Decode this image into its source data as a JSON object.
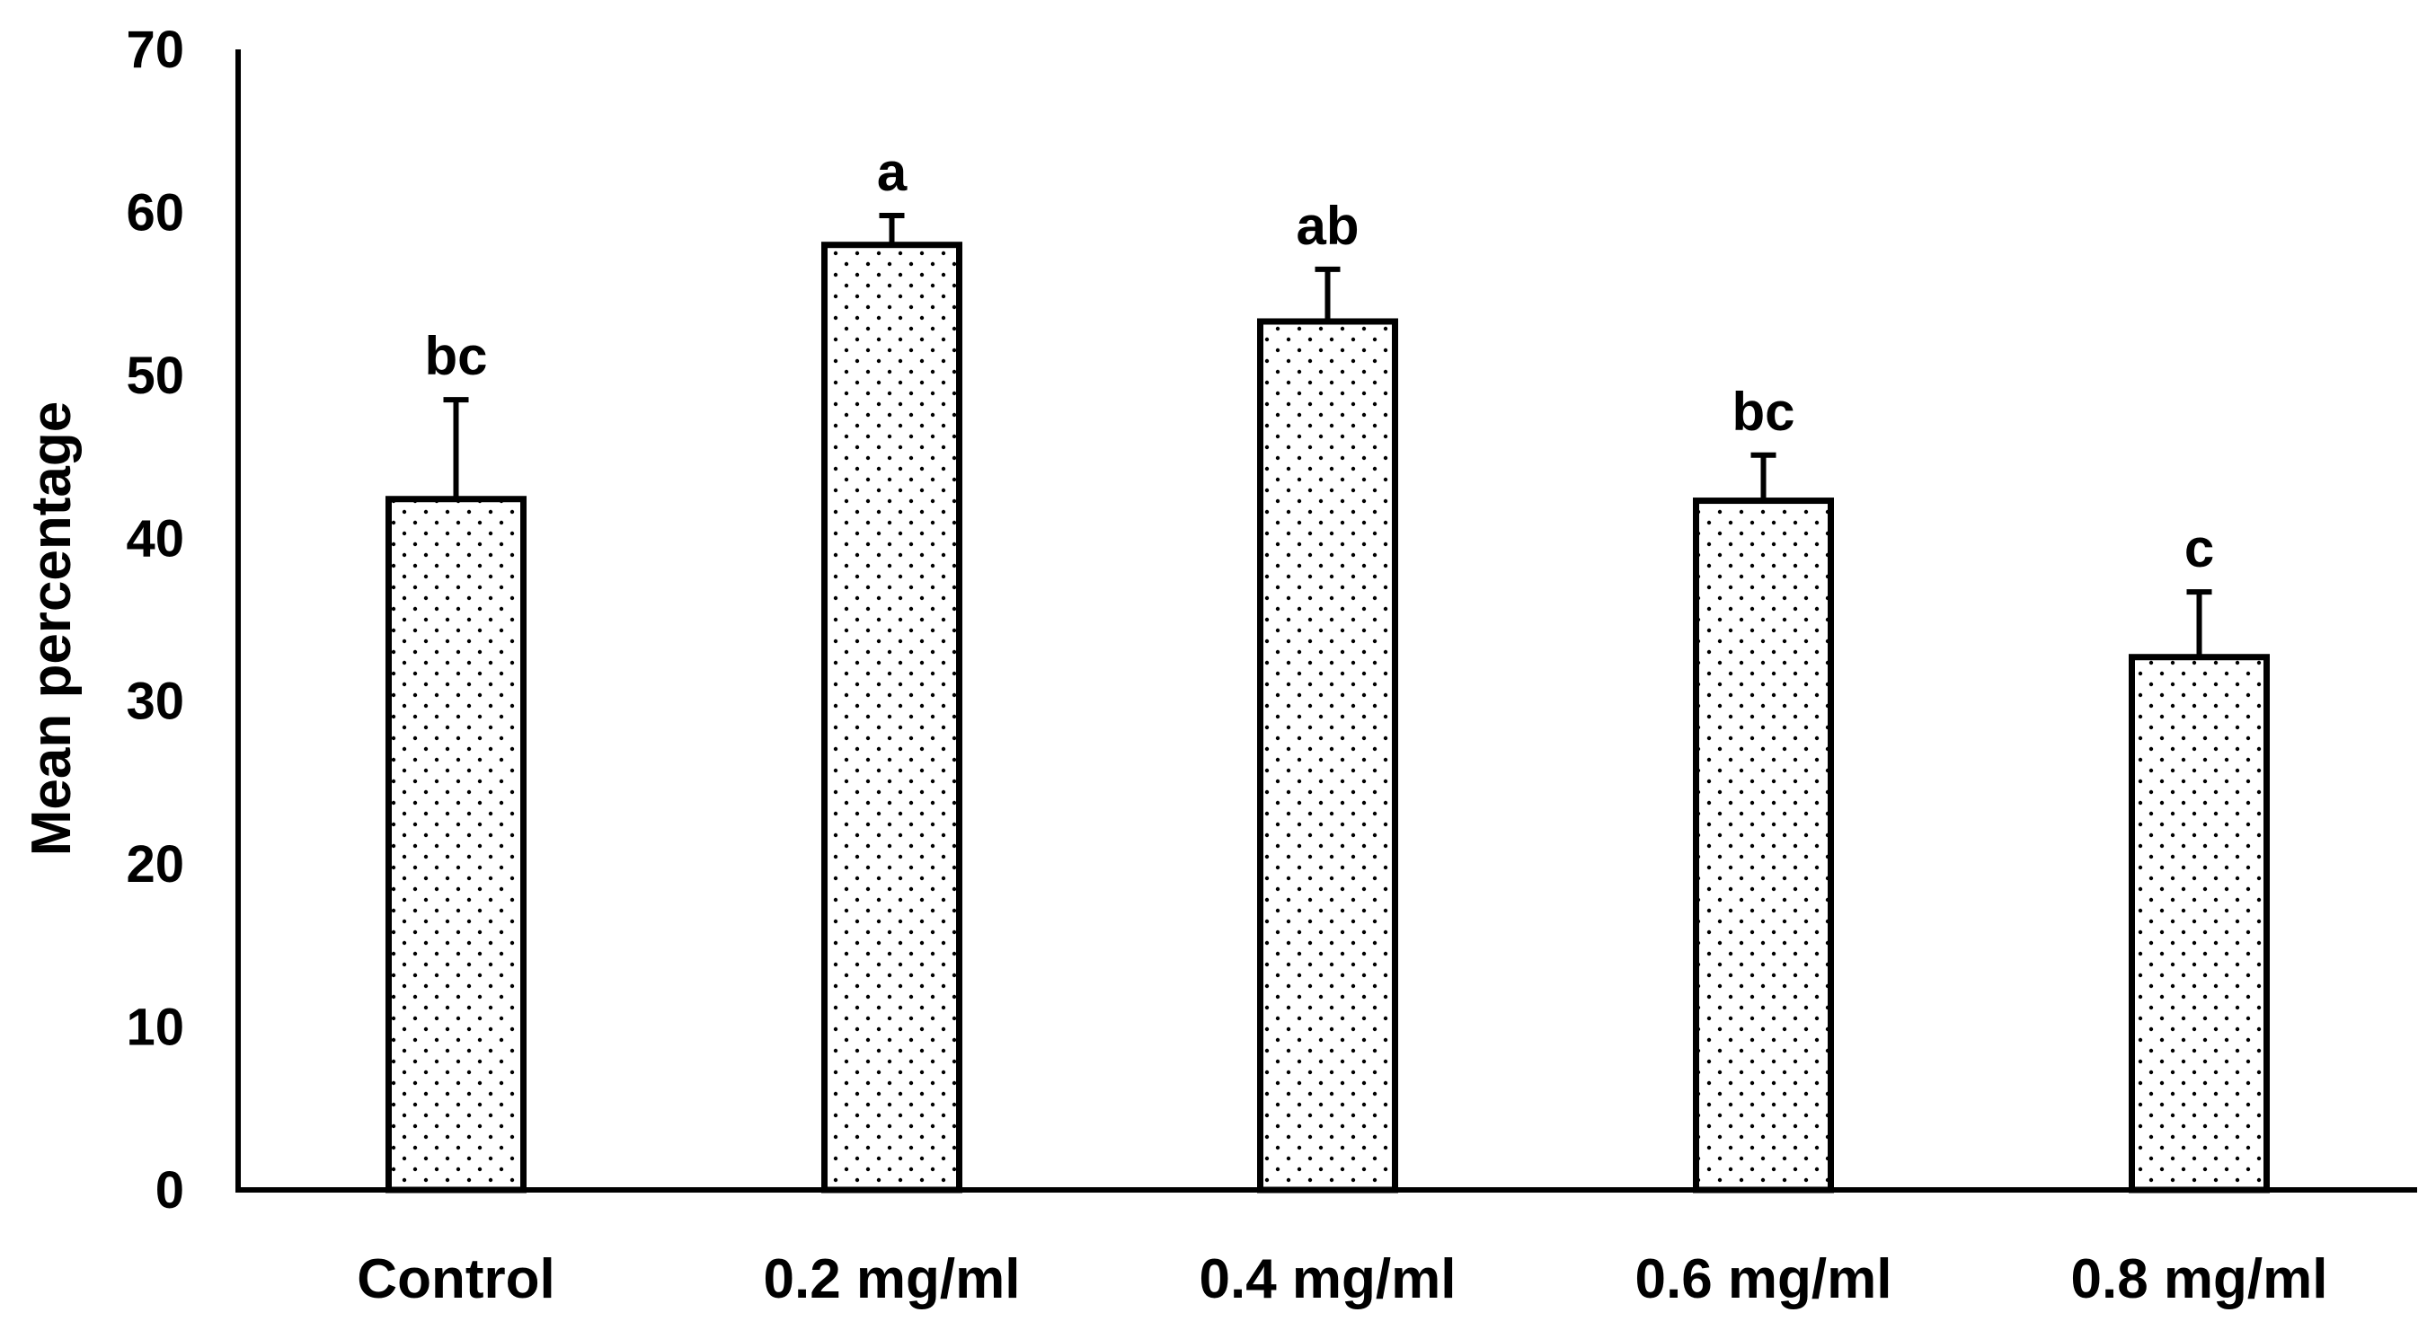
{
  "chart_data": {
    "type": "bar",
    "title": "",
    "xlabel": "",
    "ylabel": "Mean percentage",
    "ylim": [
      0,
      70
    ],
    "yticks": [
      0,
      10,
      20,
      30,
      40,
      50,
      60,
      70
    ],
    "grid": false,
    "legend": "none",
    "categories": [
      "Control",
      "0.2 mg/ml",
      "0.4 mg/ml",
      "0.6 mg/ml",
      "0.8 mg/ml"
    ],
    "series": [
      {
        "values": [
          42.4,
          58.0,
          53.3,
          42.3,
          32.7
        ],
        "error_plus": [
          6.1,
          1.8,
          3.2,
          2.8,
          4.0
        ],
        "significance_labels": [
          "bc",
          "a",
          "ab",
          "bc",
          "c"
        ]
      }
    ],
    "colors": {
      "bar_fill": "#ffffff",
      "bar_stroke": "#000000",
      "dot_pattern": "#000000",
      "axis": "#000000"
    }
  }
}
